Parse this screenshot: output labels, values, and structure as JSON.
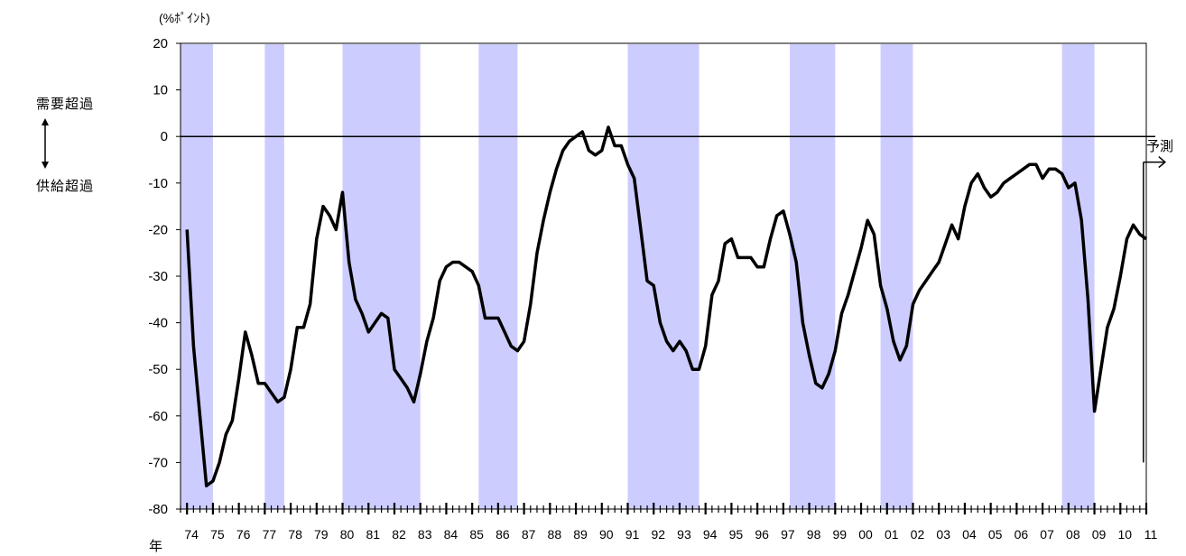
{
  "labels": {
    "unit": "(%ﾎﾟｲﾝﾄ)",
    "excess_demand": "需要超過",
    "excess_supply": "供給超過",
    "forecast": "予測",
    "year_prefix": "年"
  },
  "colors": {
    "recession_band": "#ccccff",
    "line": "#000000"
  },
  "chart_data": {
    "type": "line",
    "title": "",
    "xlabel": "年",
    "ylabel": "(%ﾎﾟｲﾝﾄ)",
    "ylim": [
      -80,
      20
    ],
    "yticks": [
      20,
      10,
      0,
      -10,
      -20,
      -30,
      -40,
      -50,
      -60,
      -70,
      -80
    ],
    "xlim": [
      1973.75,
      2011.0
    ],
    "x_tick_labels": [
      "74",
      "75",
      "76",
      "77",
      "78",
      "79",
      "80",
      "81",
      "82",
      "83",
      "84",
      "85",
      "86",
      "87",
      "88",
      "89",
      "90",
      "91",
      "92",
      "93",
      "94",
      "95",
      "96",
      "97",
      "98",
      "99",
      "00",
      "01",
      "02",
      "03",
      "04",
      "05",
      "06",
      "07",
      "08",
      "09",
      "10",
      "11"
    ],
    "grid": false,
    "zero_line": true,
    "forecast_start": 2010.75,
    "recession_shading": [
      [
        1973.75,
        1975.0
      ],
      [
        1977.0,
        1977.75
      ],
      [
        1980.0,
        1983.0
      ],
      [
        1985.25,
        1986.75
      ],
      [
        1991.0,
        1993.75
      ],
      [
        1997.25,
        1999.0
      ],
      [
        2000.75,
        2002.0
      ],
      [
        2007.75,
        2009.0
      ]
    ],
    "series": [
      {
        "x_start": 1974.0,
        "x_step": 0.25,
        "values": [
          -20,
          -45,
          -60,
          -75,
          -74,
          -70,
          -64,
          -61,
          -52,
          -42,
          -47,
          -53,
          -53,
          -55,
          -57,
          -56,
          -50,
          -41,
          -41,
          -36,
          -22,
          -15,
          -17,
          -20,
          -12,
          -27,
          -35,
          -38,
          -42,
          -40,
          -38,
          -39,
          -50,
          -52,
          -54,
          -57,
          -51,
          -44,
          -39,
          -31,
          -28,
          -27,
          -27,
          -28,
          -29,
          -32,
          -39,
          -39,
          -39,
          -42,
          -45,
          -46,
          -44,
          -36,
          -25,
          -18,
          -12,
          -7,
          -3,
          -1,
          0,
          1,
          -3,
          -4,
          -3,
          2,
          -2,
          -2,
          -6,
          -9,
          -20,
          -31,
          -32,
          -40,
          -44,
          -46,
          -44,
          -46,
          -50,
          -50,
          -45,
          -34,
          -31,
          -23,
          -22,
          -26,
          -26,
          -26,
          -28,
          -28,
          -22,
          -17,
          -16,
          -21,
          -27,
          -40,
          -47,
          -53,
          -54,
          -51,
          -46,
          -38,
          -34,
          -29,
          -24,
          -18,
          -21,
          -32,
          -37,
          -44,
          -48,
          -45,
          -36,
          -33,
          -31,
          -29,
          -27,
          -23,
          -19,
          -22,
          -15,
          -10,
          -8,
          -11,
          -13,
          -12,
          -10,
          -9,
          -8,
          -7,
          -6,
          -6,
          -9,
          -7,
          -7,
          -8,
          -11,
          -10,
          -18,
          -35,
          -59,
          -50,
          -41,
          -37,
          -30,
          -22,
          -19,
          -21,
          -22
        ]
      }
    ]
  }
}
